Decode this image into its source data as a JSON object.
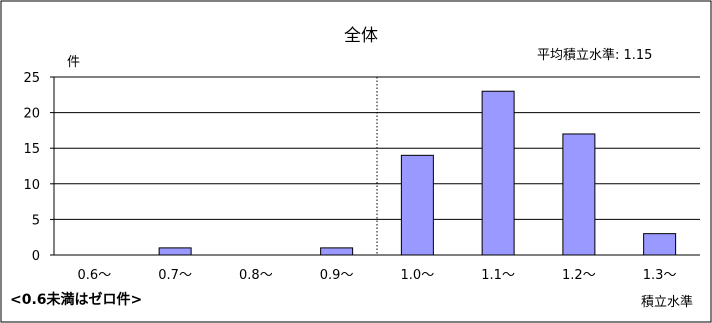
{
  "chart_data": {
    "type": "bar",
    "title": "全体",
    "annotation": "平均積立水準: 1.15",
    "y_unit": "件",
    "xlabel": "積立水準",
    "footnote": "<0.6未満はゼロ件>",
    "categories": [
      "0.6～",
      "0.7～",
      "0.8～",
      "0.9～",
      "1.0～",
      "1.1～",
      "1.2～",
      "1.3～"
    ],
    "values": [
      0,
      1,
      0,
      1,
      14,
      23,
      17,
      3
    ],
    "ylim": [
      0,
      25
    ],
    "yticks": [
      0,
      5,
      10,
      15,
      20,
      25
    ],
    "grid": true,
    "mean_marker_between_categories": [
      3,
      4
    ],
    "colors": {
      "bar_fill": "#9999ff",
      "bar_stroke": "#000000",
      "grid": "#000000"
    }
  }
}
